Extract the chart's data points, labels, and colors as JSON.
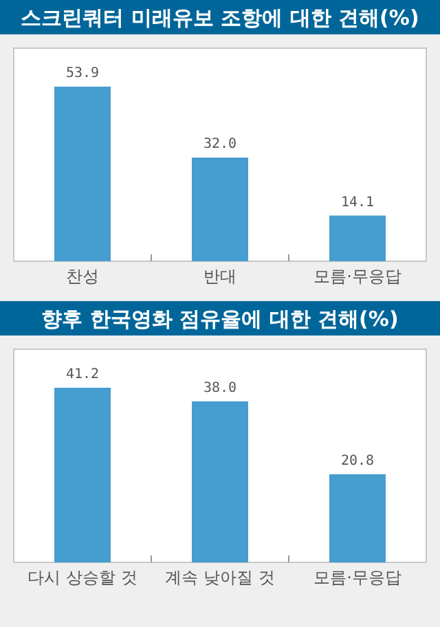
{
  "chart_data": [
    {
      "type": "bar",
      "title": "스크린쿼터 미래유보 조항에 대한 견해(%)",
      "categories": [
        "찬성",
        "반대",
        "모름·무응답"
      ],
      "values": [
        53.9,
        32.0,
        14.1
      ],
      "value_labels": [
        "53.9",
        "32.0",
        "14.1"
      ],
      "color": "#469dcf"
    },
    {
      "type": "bar",
      "title": "향후 한국영화 점유율에 대한 견해(%)",
      "categories": [
        "다시 상승할 것",
        "계속 낮아질 것",
        "모름·무응답"
      ],
      "values": [
        41.2,
        38.0,
        20.8
      ],
      "value_labels": [
        "41.2",
        "38.0",
        "20.8"
      ],
      "color": "#469dcf"
    }
  ]
}
